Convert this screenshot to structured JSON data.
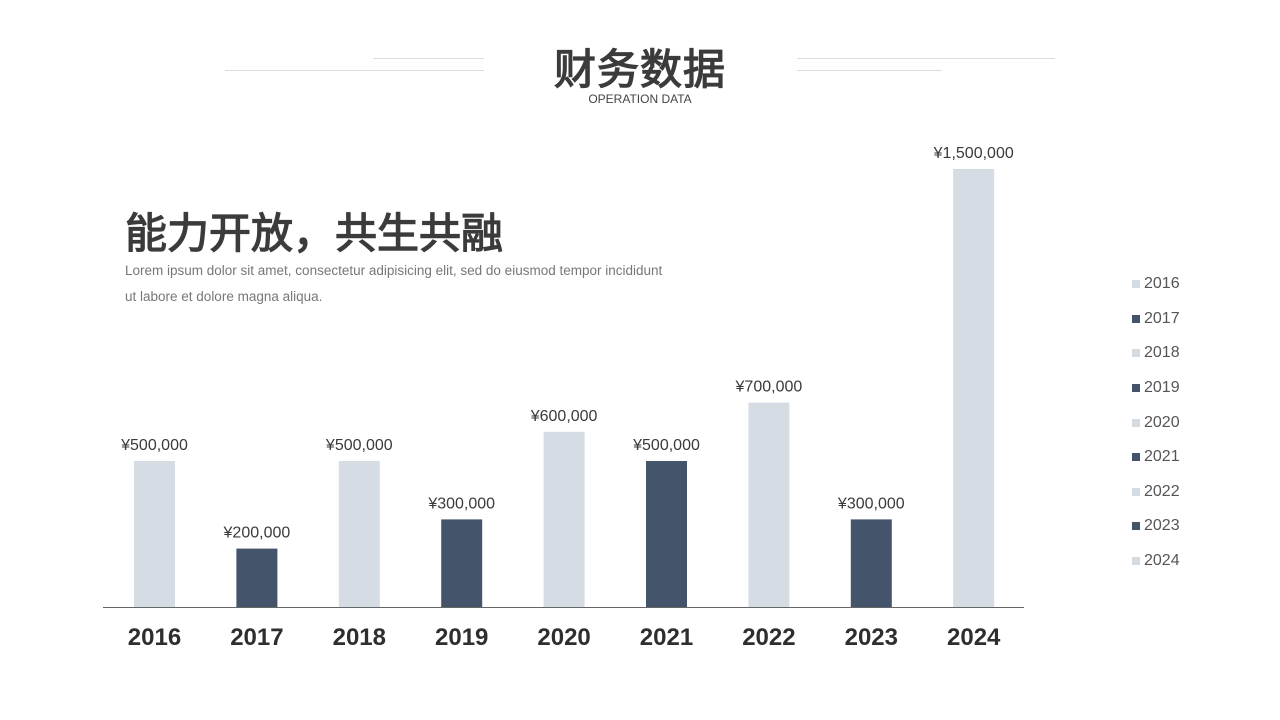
{
  "header": {
    "title": "财务数据",
    "subtitle": "OPERATION DATA"
  },
  "text_block": {
    "heading": "能力开放，共生共融",
    "description": "Lorem ipsum dolor sit amet, consectetur adipisicing elit, sed do eiusmod tempor incididunt ut labore et dolore magna aliqua."
  },
  "colors": {
    "light": "#d6dce4",
    "dark": "#44546a",
    "text": "#3a3a3a",
    "axis": "#666666"
  },
  "chart_data": {
    "type": "bar",
    "categories": [
      "2016",
      "2017",
      "2018",
      "2019",
      "2020",
      "2021",
      "2022",
      "2023",
      "2024"
    ],
    "values": [
      500000,
      200000,
      500000,
      300000,
      600000,
      500000,
      700000,
      300000,
      1500000
    ],
    "data_labels": [
      "¥500,000",
      "¥200,000",
      "¥500,000",
      "¥300,000",
      "¥600,000",
      "¥500,000",
      "¥700,000",
      "¥300,000",
      "¥1,500,000"
    ],
    "bar_colors": [
      "light",
      "dark",
      "light",
      "dark",
      "light",
      "dark",
      "light",
      "dark",
      "light"
    ],
    "ylim": [
      0,
      1500000
    ],
    "grid": false,
    "legend": {
      "placement": "right",
      "entries": [
        "2016",
        "2017",
        "2018",
        "2019",
        "2020",
        "2021",
        "2022",
        "2023",
        "2024"
      ]
    }
  }
}
